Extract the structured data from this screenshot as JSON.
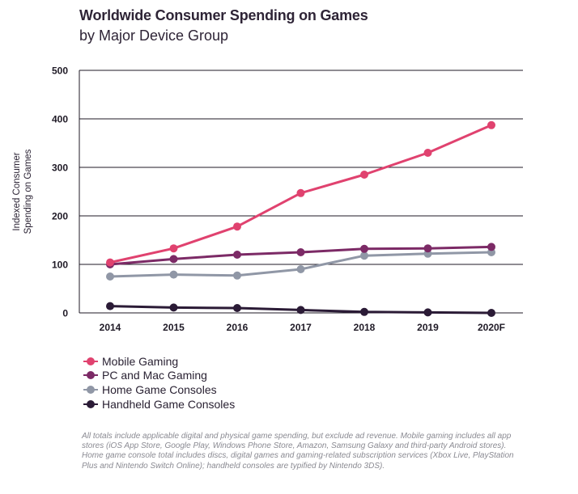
{
  "title": "Worldwide Consumer Spending on Games",
  "subtitle": "by Major Device Group",
  "footnote": "All totals include applicable digital and physical game spending, but exclude ad revenue. Mobile gaming includes  all app stores (iOS App Store, Google Play, Windows Phone Store, Amazon, Samsung Galaxy and third-party Android stores). Home game console total includes discs, digital games and gaming-related subscription services (Xbox Live, PlayStation Plus and Nintendo Switch Online); handheld consoles are typified by Nintendo 3DS).",
  "chart_data": {
    "type": "line",
    "title": "Worldwide Consumer Spending on Games",
    "subtitle": "by Major Device Group",
    "xlabel": "",
    "ylabel": "Indexed Consumer Spending on Games",
    "ylabel_lines": [
      "Indexed Consumer",
      "Spending on Games"
    ],
    "categories": [
      "2014",
      "2015",
      "2016",
      "2017",
      "2018",
      "2019",
      "2020F"
    ],
    "ylim": [
      0,
      500
    ],
    "yticks": [
      0,
      100,
      200,
      300,
      400,
      500
    ],
    "grid": "horizontal",
    "legend_position": "bottom-left",
    "series": [
      {
        "name": "Mobile Gaming",
        "color": "#e0426f",
        "values": [
          104,
          133,
          178,
          247,
          285,
          330,
          387
        ]
      },
      {
        "name": "PC and Mac Gaming",
        "color": "#7c2a66",
        "values": [
          100,
          111,
          120,
          125,
          132,
          133,
          136
        ]
      },
      {
        "name": "Home Game Consoles",
        "color": "#9097a6",
        "values": [
          75,
          79,
          77,
          90,
          118,
          122,
          125
        ]
      },
      {
        "name": "Handheld Game Consoles",
        "color": "#2b1b36",
        "values": [
          14,
          11,
          10,
          6,
          2,
          1,
          0
        ]
      }
    ]
  }
}
